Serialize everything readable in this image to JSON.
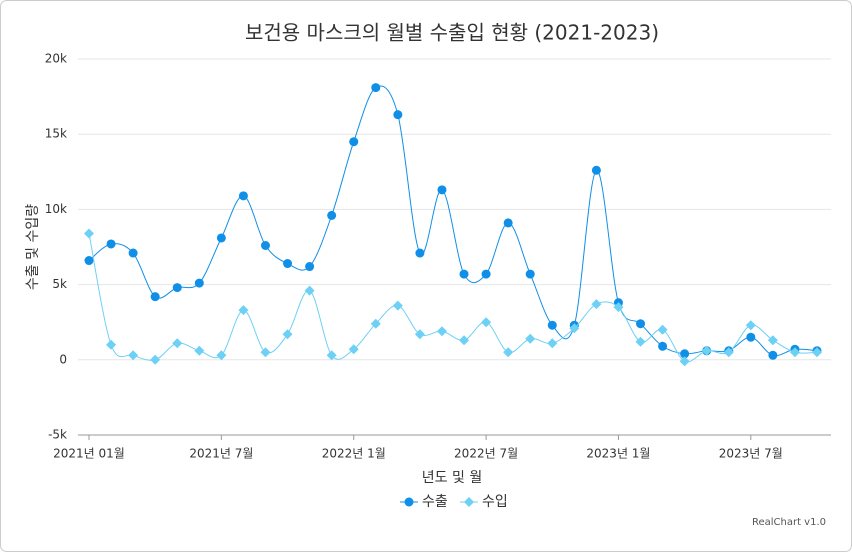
{
  "chart_data": {
    "type": "line",
    "title": "보건용 마스크의 월별 수출입 현황 (2021-2023)",
    "x_label": "년도 및 월",
    "y_label": "수출 및 수입량",
    "credit": "RealChart v1.0",
    "categories": [
      "2021년 01월",
      null,
      null,
      null,
      null,
      null,
      "2021년 7월",
      null,
      null,
      null,
      null,
      null,
      "2022년 1월",
      null,
      null,
      null,
      null,
      null,
      "2022년 7월",
      null,
      null,
      null,
      null,
      null,
      "2023년 1월",
      null,
      null,
      null,
      null,
      null,
      "2023년 7월",
      null,
      null,
      null
    ],
    "series": [
      {
        "name": "수출",
        "color": "#0f8fe8",
        "marker": "circle",
        "values": [
          6600,
          7700,
          7100,
          4200,
          4800,
          5100,
          8100,
          10900,
          7600,
          6400,
          6200,
          9600,
          14500,
          18100,
          16300,
          7100,
          11300,
          5700,
          5700,
          9100,
          5700,
          2300,
          2300,
          12600,
          3800,
          2400,
          900,
          400,
          600,
          600,
          1500,
          300,
          700,
          600
        ]
      },
      {
        "name": "수입",
        "color": "#6dd0f5",
        "marker": "diamond",
        "values": [
          8400,
          1000,
          300,
          0,
          1100,
          600,
          300,
          3300,
          500,
          1700,
          4600,
          300,
          700,
          2400,
          3600,
          1700,
          1900,
          1300,
          2500,
          500,
          1400,
          1100,
          2100,
          3700,
          3500,
          1200,
          2000,
          -100,
          600,
          500,
          2300,
          1300,
          500,
          500
        ]
      }
    ],
    "ylim": [
      -5000,
      20000
    ],
    "yticks": [
      {
        "value": -5000,
        "label": "-5k"
      },
      0,
      {
        "value": 5000,
        "label": "5k"
      },
      {
        "value": 10000,
        "label": "10k"
      },
      {
        "value": 15000,
        "label": "15k"
      },
      {
        "value": 20000,
        "label": "20k"
      }
    ],
    "grid": true,
    "legend": "bottom"
  }
}
